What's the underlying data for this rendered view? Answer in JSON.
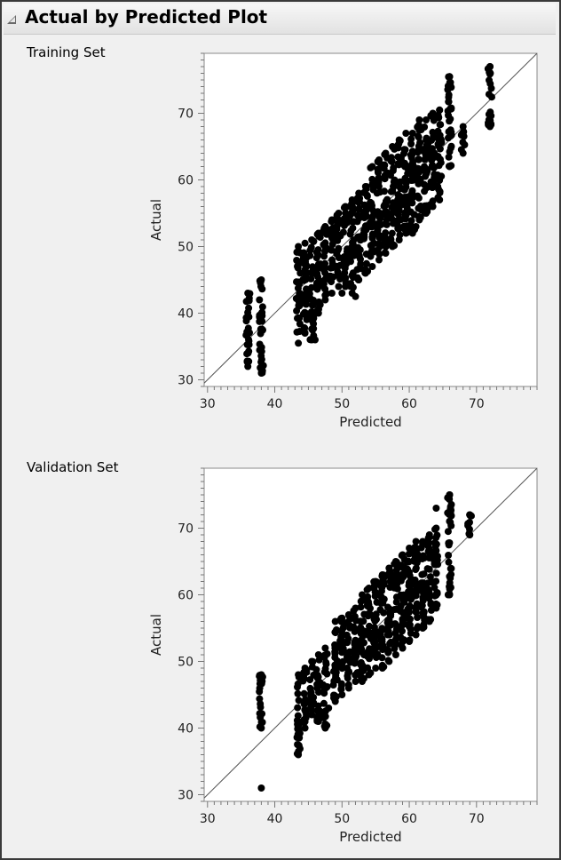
{
  "report": {
    "title": "Actual by Predicted Plot",
    "disclosure_icon": "disclosure-triangle-icon"
  },
  "colors": {
    "points": "#000000",
    "diagonal": "#555555",
    "frame_bg": "#f0f0f0"
  },
  "chart_data": [
    {
      "type": "scatter",
      "title": "Training Set",
      "xlabel": "Predicted",
      "ylabel": "Actual",
      "xlim": [
        29.5,
        79
      ],
      "ylim": [
        29,
        79
      ],
      "xticks": [
        30,
        40,
        50,
        60,
        70
      ],
      "yticks": [
        30,
        40,
        50,
        60,
        70
      ],
      "diagonal": "y = x",
      "grid": false,
      "bands": [
        {
          "x": 36,
          "y": [
            32,
            43
          ]
        },
        {
          "x": 38,
          "y": [
            31,
            45
          ]
        },
        {
          "x": 43.5,
          "y": [
            35.5,
            50
          ]
        },
        {
          "x": 44.5,
          "y": [
            37,
            50.5
          ]
        },
        {
          "x": 45.5,
          "y": [
            36,
            51
          ]
        },
        {
          "x": 46.5,
          "y": [
            40,
            52
          ]
        },
        {
          "x": 47.5,
          "y": [
            42,
            53
          ]
        },
        {
          "x": 48.5,
          "y": [
            43,
            54
          ]
        },
        {
          "x": 49.5,
          "y": [
            44,
            55
          ]
        },
        {
          "x": 50.5,
          "y": [
            44,
            56
          ]
        },
        {
          "x": 51.5,
          "y": [
            43,
            57
          ]
        },
        {
          "x": 52.5,
          "y": [
            45,
            58
          ]
        },
        {
          "x": 53.5,
          "y": [
            46,
            59
          ]
        },
        {
          "x": 54.5,
          "y": [
            47,
            62
          ]
        },
        {
          "x": 55.5,
          "y": [
            48,
            63
          ]
        },
        {
          "x": 56.5,
          "y": [
            49,
            64
          ]
        },
        {
          "x": 57.5,
          "y": [
            50,
            65
          ]
        },
        {
          "x": 58.5,
          "y": [
            51,
            66
          ]
        },
        {
          "x": 59.5,
          "y": [
            52,
            67
          ]
        },
        {
          "x": 60.5,
          "y": [
            52,
            67
          ]
        },
        {
          "x": 61.5,
          "y": [
            54,
            69
          ]
        },
        {
          "x": 62.5,
          "y": [
            55,
            69
          ]
        },
        {
          "x": 63.5,
          "y": [
            56,
            70
          ]
        },
        {
          "x": 64.5,
          "y": [
            57,
            70.5
          ]
        },
        {
          "x": 66,
          "y": [
            62,
            75.5
          ]
        },
        {
          "x": 68,
          "y": [
            64,
            68
          ]
        },
        {
          "x": 72,
          "y": [
            68,
            77
          ]
        }
      ],
      "extra_points": [
        [
          66,
          75.5
        ],
        [
          72,
          77
        ],
        [
          72,
          68.5
        ],
        [
          61,
          53
        ],
        [
          50,
          43
        ],
        [
          46,
          36
        ],
        [
          68,
          67
        ],
        [
          52,
          42.5
        ]
      ]
    },
    {
      "type": "scatter",
      "title": "Validation Set",
      "xlabel": "Predicted",
      "ylabel": "Actual",
      "xlim": [
        29.5,
        79
      ],
      "ylim": [
        29,
        79
      ],
      "xticks": [
        30,
        40,
        50,
        60,
        70
      ],
      "yticks": [
        30,
        40,
        50,
        60,
        70
      ],
      "diagonal": "y = x",
      "grid": false,
      "bands": [
        {
          "x": 38,
          "y": [
            40,
            48
          ]
        },
        {
          "x": 43.5,
          "y": [
            36,
            48
          ]
        },
        {
          "x": 44.5,
          "y": [
            40,
            49
          ]
        },
        {
          "x": 45.5,
          "y": [
            42,
            50
          ]
        },
        {
          "x": 46.5,
          "y": [
            41,
            51
          ]
        },
        {
          "x": 47.5,
          "y": [
            40,
            52
          ]
        },
        {
          "x": 49,
          "y": [
            44,
            56
          ]
        },
        {
          "x": 50,
          "y": [
            45,
            56.5
          ]
        },
        {
          "x": 51,
          "y": [
            46,
            57
          ]
        },
        {
          "x": 52,
          "y": [
            47,
            58
          ]
        },
        {
          "x": 53,
          "y": [
            47,
            60
          ]
        },
        {
          "x": 54,
          "y": [
            48,
            61
          ]
        },
        {
          "x": 55,
          "y": [
            49,
            62
          ]
        },
        {
          "x": 56,
          "y": [
            49,
            63
          ]
        },
        {
          "x": 57,
          "y": [
            50,
            64
          ]
        },
        {
          "x": 58,
          "y": [
            51,
            65
          ]
        },
        {
          "x": 59,
          "y": [
            52,
            66
          ]
        },
        {
          "x": 60,
          "y": [
            53,
            67
          ]
        },
        {
          "x": 61,
          "y": [
            54,
            68
          ]
        },
        {
          "x": 62,
          "y": [
            55,
            68
          ]
        },
        {
          "x": 63,
          "y": [
            56,
            69
          ]
        },
        {
          "x": 64,
          "y": [
            58,
            70
          ]
        },
        {
          "x": 66,
          "y": [
            60,
            75
          ]
        },
        {
          "x": 69,
          "y": [
            69,
            72
          ]
        }
      ],
      "extra_points": [
        [
          38,
          31
        ],
        [
          66,
          75
        ],
        [
          64,
          73
        ],
        [
          69,
          72
        ],
        [
          69,
          69
        ],
        [
          59,
          52
        ],
        [
          48,
          43
        ]
      ]
    }
  ]
}
